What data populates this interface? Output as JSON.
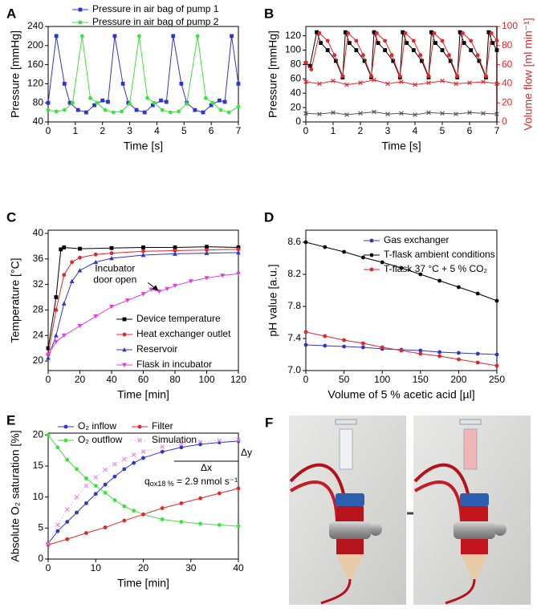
{
  "chart_data": [
    {
      "type": "line",
      "label": "A",
      "xlabel": "Time [s]",
      "ylabel": "Pressure [mmHg]",
      "xlim": [
        0,
        7
      ],
      "xticks": [
        0,
        1,
        2,
        3,
        4,
        5,
        6,
        7
      ],
      "ylim": [
        40,
        240
      ],
      "yticks": [
        40,
        80,
        120,
        160,
        200,
        240
      ],
      "legend": "above",
      "series": [
        {
          "name": "Pressure in air bag of pump 1",
          "color": "#2f35c8",
          "marker": "square",
          "x": [
            0,
            0.3,
            0.6,
            0.8,
            1.1,
            1.4,
            1.7,
            2.0,
            2.2,
            2.45,
            2.75,
            2.95,
            3.25,
            3.55,
            3.85,
            4.15,
            4.35,
            4.6,
            4.9,
            5.1,
            5.4,
            5.7,
            6.0,
            6.3,
            6.5,
            6.75,
            7.0
          ],
          "values": [
            80,
            220,
            120,
            80,
            65,
            60,
            75,
            85,
            82,
            220,
            120,
            80,
            65,
            60,
            75,
            85,
            82,
            220,
            120,
            80,
            65,
            60,
            75,
            85,
            82,
            220,
            120
          ]
        },
        {
          "name": "Pressure in air bag of pump 2",
          "color": "#3ee23e",
          "marker": "circle",
          "x": [
            0,
            0.3,
            0.6,
            0.9,
            1.25,
            1.55,
            1.8,
            2.1,
            2.4,
            2.7,
            3.0,
            3.35,
            3.65,
            3.9,
            4.2,
            4.5,
            4.8,
            5.1,
            5.5,
            5.8,
            6.05,
            6.35,
            6.65,
            7.0
          ],
          "values": [
            65,
            62,
            65,
            80,
            220,
            90,
            80,
            65,
            60,
            62,
            78,
            220,
            90,
            80,
            65,
            60,
            62,
            78,
            220,
            90,
            80,
            65,
            60,
            72
          ]
        }
      ]
    },
    {
      "type": "line",
      "label": "B",
      "xlabel": "Time [s]",
      "ylabel": "Pressure [mmHg]",
      "y2label": "Volume flow [ml min⁻¹]",
      "y2color": "#e3262a",
      "xlim": [
        0,
        7
      ],
      "xticks": [
        0,
        1,
        2,
        3,
        4,
        5,
        6,
        7
      ],
      "ylim": [
        0,
        133
      ],
      "yticks": [
        0,
        20,
        40,
        60,
        80,
        100,
        120
      ],
      "y2lim": [
        0,
        100
      ],
      "y2ticks": [
        0,
        20,
        40,
        60,
        80,
        100
      ],
      "series": [
        {
          "color": "#000000",
          "marker": "square",
          "x": [
            0,
            0.15,
            0.4,
            0.55,
            0.8,
            1.1,
            1.35,
            1.45,
            1.6,
            1.85,
            2.15,
            2.4,
            2.5,
            2.65,
            2.9,
            3.2,
            3.45,
            3.55,
            3.7,
            3.95,
            4.25,
            4.5,
            4.6,
            4.75,
            5.0,
            5.3,
            5.55,
            5.65,
            5.8,
            6.05,
            6.35,
            6.6,
            6.7,
            6.85,
            7.0
          ],
          "values": [
            82,
            78,
            125,
            110,
            100,
            85,
            62,
            125,
            110,
            100,
            85,
            62,
            125,
            110,
            100,
            85,
            62,
            125,
            110,
            100,
            85,
            62,
            125,
            110,
            100,
            85,
            62,
            125,
            110,
            100,
            85,
            62,
            125,
            110,
            100
          ]
        },
        {
          "color": "#e3262a",
          "marker": "circle",
          "axis": "y2",
          "x": [
            0,
            0.2,
            0.5,
            0.8,
            1.05,
            1.35,
            1.55,
            1.85,
            2.1,
            2.4,
            2.6,
            2.9,
            3.15,
            3.45,
            3.65,
            3.95,
            4.2,
            4.5,
            4.7,
            5.0,
            5.25,
            5.55,
            5.75,
            6.05,
            6.3,
            6.6,
            6.8,
            7.0
          ],
          "values": [
            62,
            55,
            93,
            85,
            70,
            48,
            93,
            85,
            70,
            48,
            93,
            85,
            70,
            48,
            93,
            85,
            70,
            48,
            93,
            85,
            70,
            48,
            93,
            85,
            70,
            48,
            93,
            85
          ]
        },
        {
          "color": "#555555",
          "marker": "x",
          "x": [
            0,
            0.5,
            1,
            1.5,
            2,
            2.5,
            3,
            3.5,
            4,
            4.5,
            5,
            5.5,
            6,
            6.5,
            7
          ],
          "values": [
            12,
            11,
            13,
            10,
            12,
            14,
            11,
            12,
            10,
            13,
            12,
            11,
            13,
            12,
            11
          ]
        },
        {
          "color": "#e3262a",
          "marker": "x",
          "axis": "y2",
          "x": [
            0,
            0.5,
            1,
            1.5,
            2,
            2.5,
            3,
            3.5,
            4,
            4.5,
            5,
            5.5,
            6,
            6.5,
            7
          ],
          "values": [
            42,
            40,
            43,
            39,
            41,
            44,
            40,
            42,
            39,
            41,
            43,
            40,
            41,
            42,
            40
          ]
        }
      ]
    },
    {
      "type": "line",
      "label": "C",
      "xlabel": "Time [min]",
      "ylabel": "Temperature [°C]",
      "xlim": [
        0,
        120
      ],
      "xticks": [
        0,
        20,
        40,
        60,
        80,
        100,
        120
      ],
      "ylim": [
        18.5,
        40.5
      ],
      "yticks": [
        20,
        24,
        28,
        32,
        36,
        40
      ],
      "legend": "lower right",
      "annotation": {
        "lines": [
          "Incubator",
          "door open"
        ],
        "x": 70
      },
      "series": [
        {
          "name": "Device temperature",
          "color": "#000000",
          "marker": "square",
          "x": [
            0,
            5,
            8,
            10,
            20,
            40,
            60,
            80,
            100,
            120
          ],
          "values": [
            22,
            30,
            37.5,
            37.8,
            37.6,
            37.7,
            37.8,
            37.8,
            37.9,
            37.8
          ]
        },
        {
          "name": "Heat exchanger outlet",
          "color": "#e3262a",
          "marker": "circle",
          "x": [
            0,
            5,
            10,
            15,
            20,
            30,
            40,
            60,
            80,
            100,
            120
          ],
          "values": [
            21,
            28,
            33.5,
            35.5,
            36.2,
            36.7,
            36.9,
            37.2,
            37.3,
            37.4,
            37.5
          ]
        },
        {
          "name": "Reservoir",
          "color": "#2f35c8",
          "marker": "triangle",
          "x": [
            0,
            5,
            10,
            15,
            20,
            30,
            40,
            60,
            80,
            100,
            120
          ],
          "values": [
            20.5,
            24,
            29,
            32.5,
            34.2,
            35.5,
            36.1,
            36.6,
            36.8,
            36.9,
            37
          ]
        },
        {
          "name": "Flask in incubator",
          "color": "#e33be3",
          "marker": "down-triangle",
          "x": [
            0,
            5,
            10,
            20,
            30,
            40,
            50,
            60,
            65,
            70,
            75,
            80,
            90,
            100,
            110,
            120
          ],
          "values": [
            21,
            23,
            24,
            25.5,
            27,
            28.5,
            29.5,
            30.5,
            31.2,
            30.9,
            31.3,
            31.8,
            32.5,
            33,
            33.4,
            33.7
          ]
        }
      ]
    },
    {
      "type": "line",
      "label": "D",
      "xlabel": "Volume of 5 % acetic acid [µl]",
      "ylabel": "pH value [a.u.]",
      "xlim": [
        0,
        250
      ],
      "xticks": [
        0,
        50,
        100,
        150,
        200,
        250
      ],
      "ylim": [
        7,
        8.75
      ],
      "yticks": [
        {
          "value": 7,
          "label": "7.0"
        },
        7.4,
        7.8,
        8.2,
        8.6
      ],
      "legend": "upper right",
      "series": [
        {
          "name": "Gas exchanger",
          "color": "#2f35c8",
          "marker": "circle",
          "x": [
            0,
            25,
            50,
            75,
            100,
            125,
            150,
            175,
            200,
            225,
            250
          ],
          "values": [
            7.32,
            7.31,
            7.3,
            7.29,
            7.27,
            7.26,
            7.25,
            7.23,
            7.22,
            7.21,
            7.2
          ]
        },
        {
          "name": "T-flask ambient conditions",
          "color": "#000000",
          "marker": "circle",
          "x": [
            0,
            25,
            50,
            75,
            100,
            125,
            150,
            175,
            200,
            225,
            250
          ],
          "values": [
            8.6,
            8.54,
            8.48,
            8.41,
            8.35,
            8.28,
            8.2,
            8.12,
            8.04,
            7.96,
            7.87
          ]
        },
        {
          "name": "T-flask 37 °C + 5 % CO₂",
          "color": "#e3262a",
          "marker": "circle",
          "x": [
            0,
            25,
            50,
            75,
            100,
            125,
            150,
            175,
            200,
            225,
            250
          ],
          "values": [
            7.48,
            7.43,
            7.38,
            7.34,
            7.29,
            7.25,
            7.21,
            7.18,
            7.14,
            7.1,
            7.06
          ]
        }
      ]
    },
    {
      "type": "line",
      "label": "E",
      "xlabel": "Time [min]",
      "ylabel": "Absolute O₂ saturation [%]",
      "xlim": [
        0,
        40
      ],
      "xticks": [
        0,
        10,
        20,
        30,
        40
      ],
      "ylim": [
        0,
        20.3
      ],
      "yticks": [
        0,
        5,
        10,
        15,
        20
      ],
      "legend": "upper left",
      "legend_columns": 2,
      "annotations": {
        "dx": "Δx",
        "dy": "Δy",
        "rate": {
          "symbol": "q",
          "subscript": "ox18 %",
          "text": " = 2.9 nmol s⁻¹"
        }
      },
      "series": [
        {
          "name": "O₂ inflow",
          "color": "#2f35c8",
          "marker": "circle",
          "x": [
            0,
            2,
            4,
            6,
            8,
            10,
            12,
            14,
            16,
            18,
            20,
            24,
            28,
            32,
            36,
            40
          ],
          "values": [
            2.5,
            4.5,
            6,
            7.5,
            9,
            10.5,
            12,
            13.3,
            14.5,
            15.5,
            16.3,
            17.3,
            18,
            18.5,
            18.8,
            19
          ]
        },
        {
          "name": "O₂ outflow",
          "color": "#3ee23e",
          "marker": "circle",
          "x": [
            0,
            2,
            4,
            6,
            8,
            10,
            12,
            14,
            16,
            18,
            20,
            24,
            28,
            32,
            36,
            40
          ],
          "values": [
            20,
            18,
            16,
            14.5,
            13,
            11.8,
            10.7,
            9.5,
            8.5,
            7.8,
            7.2,
            6.4,
            6,
            5.7,
            5.5,
            5.3
          ]
        },
        {
          "name": "Filter",
          "color": "#e3262a",
          "marker": "circle",
          "x": [
            0,
            4,
            8,
            12,
            16,
            20,
            24,
            28,
            32,
            36,
            40
          ],
          "values": [
            2.3,
            3.2,
            4.2,
            5.1,
            6.2,
            7.2,
            8.2,
            9,
            9.8,
            10.6,
            11.4
          ]
        },
        {
          "name": "Simulation",
          "color": "#e58be5",
          "marker": "x",
          "linestyle": "dotted",
          "x": [
            0,
            2,
            4,
            6,
            8,
            10,
            12,
            14,
            16,
            18,
            20,
            24,
            28,
            32,
            36,
            40
          ],
          "values": [
            2.5,
            5.5,
            8,
            10,
            11.8,
            13.2,
            14.4,
            15.3,
            16.1,
            16.8,
            17.3,
            18.1,
            18.6,
            18.9,
            19.1,
            19.2
          ]
        }
      ]
    }
  ],
  "photo_panel": {
    "label": "F"
  }
}
